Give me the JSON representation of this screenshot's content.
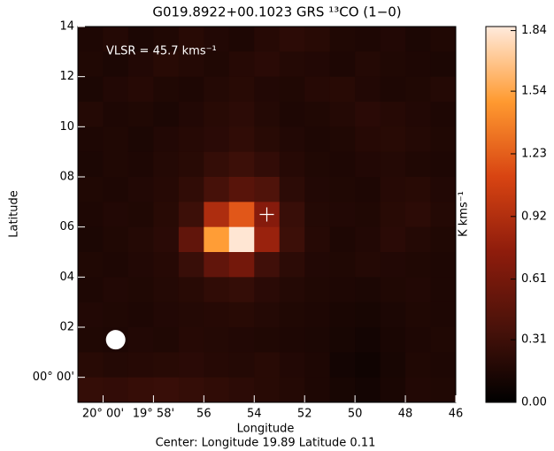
{
  "chart_data": {
    "type": "heatmap",
    "title": "G019.8922+00.1023 GRS  ¹³CO (1−0)",
    "annotation": "VLSR = 45.7 kms⁻¹",
    "x_label": "Longitude",
    "y_label": "Latitude",
    "colorbar_label": "K kms⁻¹",
    "footer": "Center:  Longitude 19.89 Latitude 0.11",
    "xlim": [
      61,
      46
    ],
    "ylim": [
      -1,
      14
    ],
    "xticks": [
      {
        "value": 60,
        "label": "20° 00'"
      },
      {
        "value": 58,
        "label": "19° 58'"
      },
      56,
      54,
      52,
      50,
      48,
      46
    ],
    "yticks": [
      {
        "value": 0,
        "label": "00° 00'"
      },
      {
        "value": 2,
        "label": "02"
      },
      {
        "value": 4,
        "label": "04"
      },
      {
        "value": 6,
        "label": "06"
      },
      {
        "value": 8,
        "label": "08"
      },
      10,
      12,
      14
    ],
    "zlim": [
      0,
      1.86
    ],
    "zticks": [
      {
        "value": 0,
        "label": "0.00"
      },
      0.31,
      0.61,
      0.92,
      1.23,
      1.54,
      1.84
    ],
    "colormap": [
      "#000000",
      "#4a120a",
      "#8e1c0c",
      "#d84412",
      "#ff9a30",
      "#ffeadc"
    ],
    "x": [
      60.5,
      59.5,
      58.5,
      57.5,
      56.5,
      55.5,
      54.5,
      53.5,
      52.5,
      51.5,
      50.5,
      49.5,
      48.5,
      47.5,
      46.5
    ],
    "y": [
      13.5,
      12.5,
      11.5,
      10.5,
      9.5,
      8.5,
      7.5,
      6.5,
      5.5,
      4.5,
      3.5,
      2.5,
      1.5,
      0.5,
      -0.5
    ],
    "z": [
      [
        0.15,
        0.18,
        0.14,
        0.16,
        0.2,
        0.17,
        0.15,
        0.19,
        0.22,
        0.2,
        0.16,
        0.15,
        0.17,
        0.14,
        0.16
      ],
      [
        0.16,
        0.14,
        0.17,
        0.2,
        0.18,
        0.16,
        0.19,
        0.21,
        0.18,
        0.17,
        0.15,
        0.18,
        0.16,
        0.15,
        0.14
      ],
      [
        0.14,
        0.17,
        0.19,
        0.16,
        0.15,
        0.18,
        0.2,
        0.17,
        0.16,
        0.19,
        0.2,
        0.17,
        0.15,
        0.16,
        0.18
      ],
      [
        0.18,
        0.15,
        0.16,
        0.14,
        0.17,
        0.2,
        0.22,
        0.18,
        0.15,
        0.16,
        0.18,
        0.21,
        0.19,
        0.17,
        0.15
      ],
      [
        0.15,
        0.16,
        0.14,
        0.17,
        0.19,
        0.21,
        0.24,
        0.2,
        0.17,
        0.15,
        0.16,
        0.19,
        0.2,
        0.18,
        0.16
      ],
      [
        0.14,
        0.16,
        0.15,
        0.18,
        0.2,
        0.26,
        0.3,
        0.25,
        0.19,
        0.16,
        0.15,
        0.17,
        0.18,
        0.16,
        0.15
      ],
      [
        0.16,
        0.15,
        0.17,
        0.19,
        0.24,
        0.35,
        0.45,
        0.4,
        0.22,
        0.17,
        0.16,
        0.15,
        0.19,
        0.2,
        0.17
      ],
      [
        0.15,
        0.17,
        0.16,
        0.2,
        0.3,
        0.9,
        1.2,
        0.7,
        0.28,
        0.18,
        0.17,
        0.16,
        0.2,
        0.22,
        0.18
      ],
      [
        0.14,
        0.16,
        0.18,
        0.21,
        0.5,
        1.5,
        1.84,
        0.8,
        0.3,
        0.19,
        0.15,
        0.17,
        0.21,
        0.18,
        0.16
      ],
      [
        0.16,
        0.15,
        0.17,
        0.19,
        0.28,
        0.5,
        0.6,
        0.32,
        0.22,
        0.17,
        0.16,
        0.18,
        0.17,
        0.16,
        0.15
      ],
      [
        0.15,
        0.17,
        0.16,
        0.18,
        0.2,
        0.24,
        0.26,
        0.21,
        0.18,
        0.16,
        0.15,
        0.14,
        0.16,
        0.17,
        0.15
      ],
      [
        0.17,
        0.16,
        0.15,
        0.17,
        0.18,
        0.19,
        0.2,
        0.18,
        0.16,
        0.15,
        0.13,
        0.12,
        0.14,
        0.16,
        0.15
      ],
      [
        0.16,
        0.15,
        0.17,
        0.16,
        0.19,
        0.18,
        0.17,
        0.16,
        0.15,
        0.14,
        0.12,
        0.1,
        0.13,
        0.15,
        0.16
      ],
      [
        0.2,
        0.18,
        0.19,
        0.2,
        0.21,
        0.19,
        0.18,
        0.2,
        0.17,
        0.15,
        0.1,
        0.08,
        0.12,
        0.16,
        0.15
      ],
      [
        0.26,
        0.25,
        0.27,
        0.28,
        0.26,
        0.24,
        0.22,
        0.2,
        0.18,
        0.15,
        0.12,
        0.1,
        0.13,
        0.17,
        0.16
      ]
    ],
    "marker": {
      "x": 53.5,
      "y": 6.5
    },
    "beam": {
      "x": 59.5,
      "y": 1.5
    }
  }
}
